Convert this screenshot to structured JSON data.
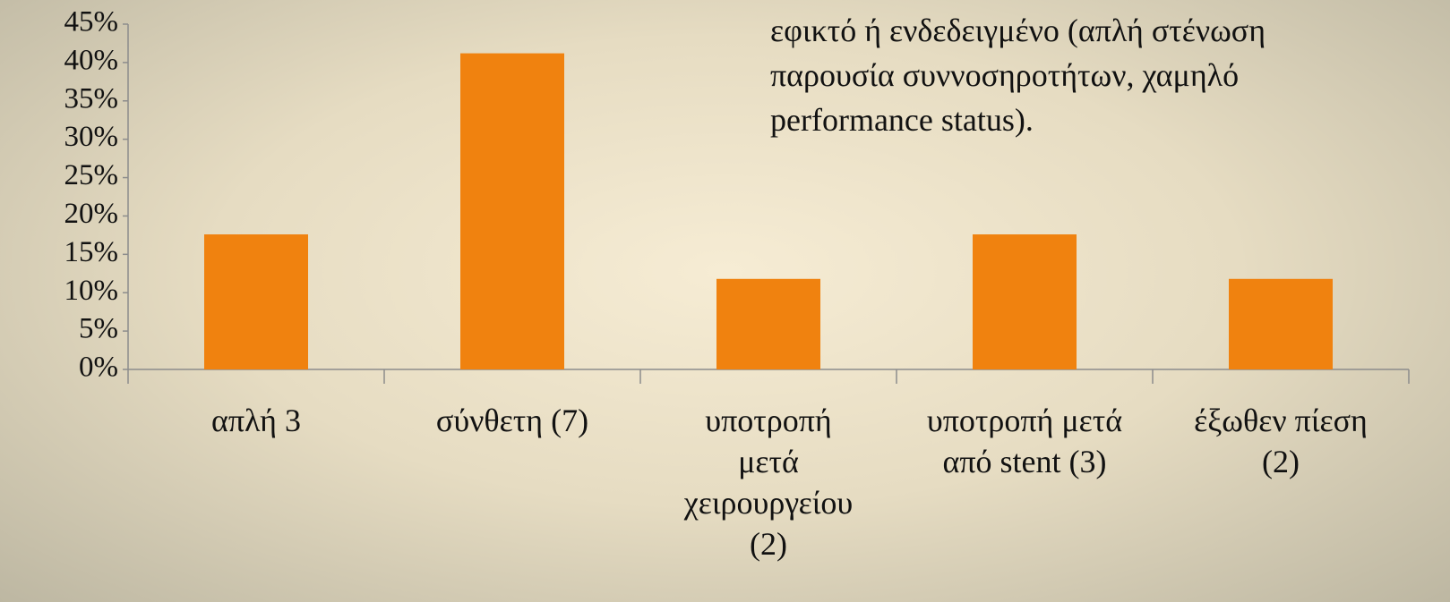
{
  "chart_data": {
    "type": "bar",
    "categories": [
      "απλή 3",
      "σύνθετη (7)",
      "υποτροπή\nμετά\nχειρουργείου\n(2)",
      "υποτροπή μετά\nαπό stent (3)",
      "έξωθεν πίεση\n(2)"
    ],
    "values": [
      17.6,
      41.2,
      11.8,
      17.6,
      11.8
    ],
    "color": "#f0820f",
    "ylim": [
      0,
      45
    ],
    "yticks": [
      {
        "value": 0,
        "label": "0%"
      },
      {
        "value": 5,
        "label": "5%"
      },
      {
        "value": 10,
        "label": "10%"
      },
      {
        "value": 15,
        "label": "15%"
      },
      {
        "value": 20,
        "label": "20%"
      },
      {
        "value": 25,
        "label": "25%"
      },
      {
        "value": 30,
        "label": "30%"
      },
      {
        "value": 35,
        "label": "35%"
      },
      {
        "value": 40,
        "label": "40%"
      },
      {
        "value": 45,
        "label": "45%"
      }
    ],
    "grid": false,
    "annotations": [
      "εφικτό ή ενδεδειγμένο (απλή στένωση",
      "παρουσία συννοσηροτήτων, χαμηλό",
      "performance status)."
    ]
  }
}
